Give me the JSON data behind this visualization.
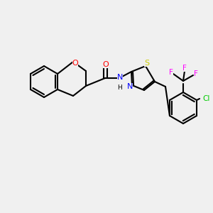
{
  "bg_color": "#f0f0f0",
  "bond_color": "#000000",
  "bond_lw": 1.5,
  "font_size": 7.5,
  "colors": {
    "O": "#ff0000",
    "N": "#0000ff",
    "S": "#cccc00",
    "F": "#ff00ff",
    "Cl": "#00cc00",
    "C": "#000000",
    "H": "#000000"
  }
}
